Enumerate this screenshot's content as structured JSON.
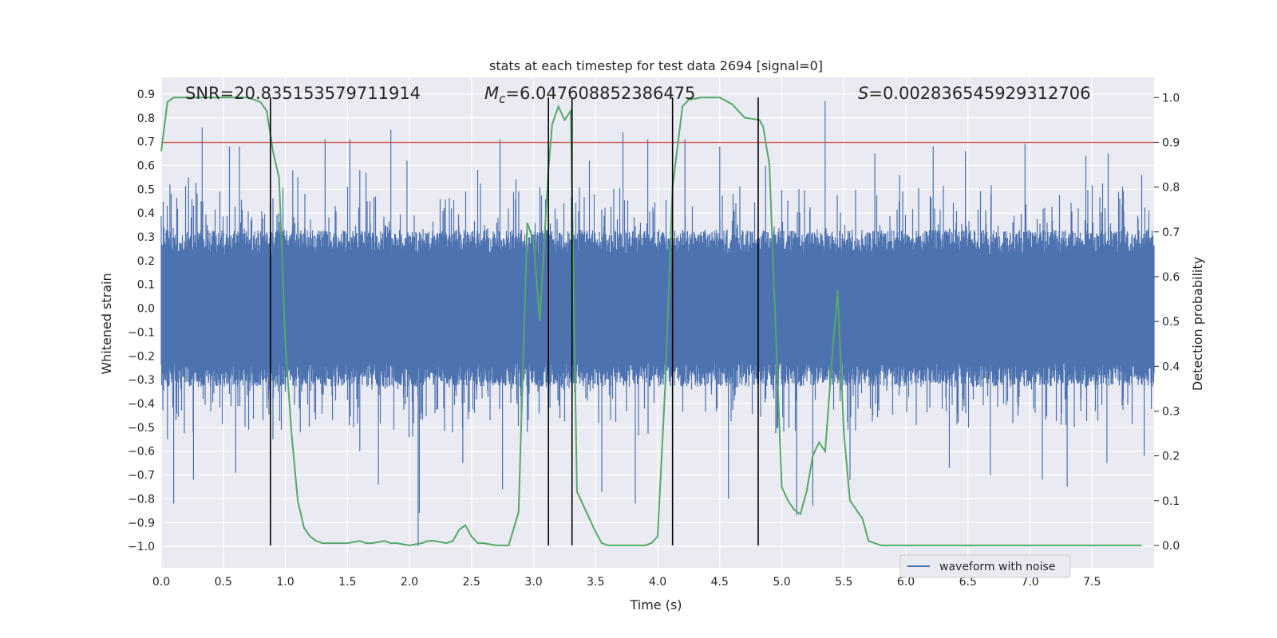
{
  "chart_data": {
    "type": "line",
    "title": "stats at each timestep for test data 2694 [signal=0]",
    "xlabel": "Time (s)",
    "ylabel": "Whitened strain",
    "y2label": "Detection probability",
    "xlim": [
      0,
      8.0
    ],
    "ylim": [
      -1.09,
      0.97
    ],
    "y2lim": [
      -0.05,
      1.045
    ],
    "xticks": [
      0.0,
      0.5,
      1.0,
      1.5,
      2.0,
      2.5,
      3.0,
      3.5,
      4.0,
      4.5,
      5.0,
      5.5,
      6.0,
      6.5,
      7.0,
      7.5
    ],
    "xtick_labels": [
      "0.0",
      "0.5",
      "1.0",
      "1.5",
      "2.0",
      "2.5",
      "3.0",
      "3.5",
      "4.0",
      "4.5",
      "5.0",
      "5.5",
      "6.0",
      "6.5",
      "7.0",
      "7.5"
    ],
    "yticks": [
      0.9,
      0.8,
      0.7,
      0.6,
      0.5,
      0.4,
      0.3,
      0.2,
      0.1,
      0.0,
      -0.1,
      -0.2,
      -0.3,
      -0.4,
      -0.5,
      -0.6,
      -0.7,
      -0.8,
      -0.9,
      -1.0
    ],
    "ytick_labels": [
      "0.9",
      "0.8",
      "0.7",
      "0.6",
      "0.5",
      "0.4",
      "0.3",
      "0.2",
      "0.1",
      "0.0",
      "−0.1",
      "−0.2",
      "−0.3",
      "−0.4",
      "−0.5",
      "−0.6",
      "−0.7",
      "−0.8",
      "−0.9",
      "−1.0"
    ],
    "y2ticks": [
      1.0,
      0.9,
      0.8,
      0.7,
      0.6,
      0.5,
      0.4,
      0.3,
      0.2,
      0.1,
      0.0
    ],
    "y2tick_labels": [
      "1.0",
      "0.9",
      "0.8",
      "0.7",
      "0.6",
      "0.5",
      "0.4",
      "0.3",
      "0.2",
      "0.1",
      "0.0"
    ],
    "annotations": {
      "snr": "SNR=20.835153579711914",
      "mc_symbol": "M",
      "mc_sub": "c",
      "mc_value": "=6.047608852386475",
      "s_symbol": "S",
      "s_value": "=0.002836545929312706"
    },
    "legend": {
      "label": "waveform with noise",
      "position": "lower-right"
    },
    "series": [
      {
        "name": "waveform with noise",
        "axis": "left",
        "color": "#4c72b0",
        "kind": "noise",
        "core_amplitude": 0.3,
        "peaks": [
          [
            0.05,
            -0.55
          ],
          [
            0.07,
            0.52
          ],
          [
            0.1,
            -0.82
          ],
          [
            0.22,
            0.55
          ],
          [
            0.26,
            -0.72
          ],
          [
            0.33,
            0.76
          ],
          [
            0.55,
            0.68
          ],
          [
            0.6,
            -0.69
          ],
          [
            0.63,
            0.68
          ],
          [
            0.9,
            -0.55
          ],
          [
            1.0,
            -0.35
          ],
          [
            1.06,
            0.58
          ],
          [
            1.12,
            -0.52
          ],
          [
            1.1,
            0.55
          ],
          [
            1.32,
            0.71
          ],
          [
            1.38,
            -0.47
          ],
          [
            1.52,
            0.71
          ],
          [
            1.55,
            -0.5
          ],
          [
            1.6,
            0.58
          ],
          [
            1.6,
            -0.6
          ],
          [
            1.65,
            0.57
          ],
          [
            1.75,
            -0.74
          ],
          [
            1.85,
            0.75
          ],
          [
            1.98,
            0.62
          ],
          [
            2.07,
            -1.0
          ],
          [
            2.08,
            -0.86
          ],
          [
            2.28,
            0.42
          ],
          [
            2.43,
            -0.65
          ],
          [
            2.55,
            0.58
          ],
          [
            2.73,
            0.71
          ],
          [
            2.75,
            -0.76
          ],
          [
            2.95,
            -0.52
          ],
          [
            3.45,
            0.62
          ],
          [
            3.55,
            -0.77
          ],
          [
            3.72,
            0.74
          ],
          [
            3.82,
            -0.82
          ],
          [
            3.92,
            0.71
          ],
          [
            4.22,
            0.71
          ],
          [
            4.5,
            0.68
          ],
          [
            4.57,
            -0.8
          ],
          [
            4.87,
            0.6
          ],
          [
            5.12,
            -0.87
          ],
          [
            5.25,
            -0.83
          ],
          [
            5.35,
            0.87
          ],
          [
            5.55,
            -0.72
          ],
          [
            5.75,
            0.65
          ],
          [
            5.95,
            0.56
          ],
          [
            6.22,
            0.68
          ],
          [
            6.35,
            -0.67
          ],
          [
            6.48,
            0.66
          ],
          [
            6.68,
            -0.7
          ],
          [
            6.96,
            0.69
          ],
          [
            7.1,
            -0.72
          ],
          [
            7.3,
            -0.75
          ],
          [
            7.45,
            0.64
          ],
          [
            7.62,
            -0.65
          ],
          [
            7.63,
            0.65
          ],
          [
            7.9,
            0.56
          ],
          [
            7.92,
            -0.62
          ]
        ]
      },
      {
        "name": "detection probability",
        "axis": "right",
        "color": "#55a868",
        "x": [
          0.0,
          0.05,
          0.1,
          0.2,
          0.3,
          0.4,
          0.5,
          0.6,
          0.7,
          0.8,
          0.85,
          0.9,
          0.95,
          1.0,
          1.05,
          1.1,
          1.15,
          1.2,
          1.25,
          1.3,
          1.4,
          1.5,
          1.6,
          1.65,
          1.7,
          1.8,
          1.85,
          1.9,
          2.0,
          2.1,
          2.15,
          2.2,
          2.3,
          2.35,
          2.4,
          2.45,
          2.5,
          2.55,
          2.6,
          2.7,
          2.8,
          2.88,
          2.95,
          3.0,
          3.05,
          3.12,
          3.15,
          3.2,
          3.25,
          3.3,
          3.35,
          3.45,
          3.5,
          3.55,
          3.6,
          3.7,
          3.8,
          3.9,
          3.95,
          4.0,
          4.06,
          4.12,
          4.2,
          4.25,
          4.35,
          4.5,
          4.6,
          4.65,
          4.7,
          4.82,
          4.85,
          4.9,
          5.0,
          5.05,
          5.1,
          5.15,
          5.2,
          5.25,
          5.3,
          5.35,
          5.4,
          5.45,
          5.5,
          5.55,
          5.6,
          5.65,
          5.7,
          5.75,
          5.8,
          5.85,
          5.9,
          6.0,
          6.2,
          6.5,
          7.0,
          7.5,
          7.8,
          7.9
        ],
        "y": [
          0.88,
          0.99,
          1.0,
          1.0,
          1.0,
          1.0,
          1.0,
          1.0,
          1.0,
          0.99,
          0.97,
          0.88,
          0.82,
          0.45,
          0.25,
          0.1,
          0.04,
          0.02,
          0.01,
          0.005,
          0.005,
          0.005,
          0.01,
          0.005,
          0.005,
          0.01,
          0.005,
          0.005,
          0.0,
          0.005,
          0.01,
          0.01,
          0.005,
          0.01,
          0.035,
          0.045,
          0.02,
          0.005,
          0.005,
          0.0,
          0.0,
          0.075,
          0.72,
          0.68,
          0.5,
          0.84,
          0.94,
          0.98,
          0.95,
          0.97,
          0.12,
          0.06,
          0.03,
          0.005,
          0.0,
          0.0,
          0.0,
          0.0,
          0.005,
          0.02,
          0.35,
          0.8,
          0.98,
          0.995,
          1.0,
          1.0,
          0.985,
          0.97,
          0.955,
          0.95,
          0.935,
          0.85,
          0.13,
          0.1,
          0.08,
          0.07,
          0.12,
          0.2,
          0.23,
          0.21,
          0.4,
          0.57,
          0.25,
          0.1,
          0.08,
          0.06,
          0.01,
          0.005,
          0.0,
          0.0,
          0.0,
          0.0,
          0.0,
          0.0,
          0.0,
          0.0,
          0.0,
          0.0
        ]
      }
    ],
    "threshold": {
      "axis": "right",
      "value": 0.9,
      "color": "#c44e52"
    },
    "vertical_lines": [
      0.88,
      3.12,
      3.31,
      4.12,
      4.81
    ],
    "vline_range_y2": [
      0.0,
      1.0
    ],
    "colors": {
      "background": "#eaeaf2",
      "grid": "#ffffff",
      "vline": "#000000"
    }
  }
}
